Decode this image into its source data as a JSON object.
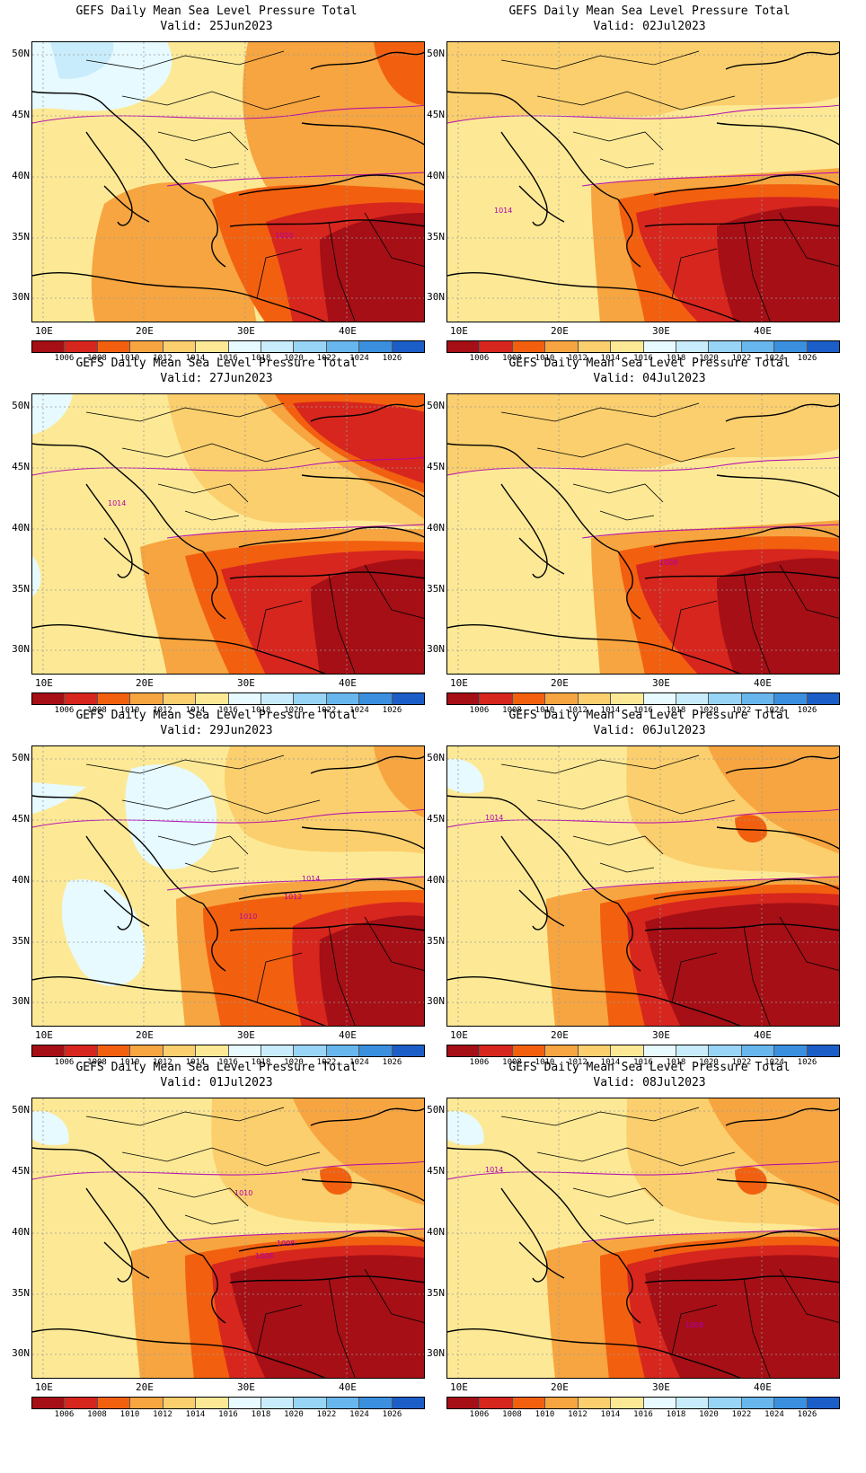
{
  "title": "GEFS Daily Mean Sea Level Pressure Total",
  "lat_labels": [
    "50N",
    "45N",
    "40N",
    "35N",
    "30N"
  ],
  "lon_labels": [
    "10E",
    "20E",
    "30E",
    "40E"
  ],
  "colorbar": {
    "labels": [
      "1006",
      "1008",
      "1010",
      "1012",
      "1014",
      "1016",
      "1018",
      "1020",
      "1022",
      "1024",
      "1026"
    ],
    "colors": [
      "#a50f15",
      "#d7261e",
      "#f2600f",
      "#f7a540",
      "#fbcf6d",
      "#fde995",
      "#e6faff",
      "#c8ecfb",
      "#98d4f5",
      "#68b6ee",
      "#3a8fdf",
      "#1c5ec8"
    ]
  },
  "panels": [
    {
      "valid": "Valid: 25Jun2023",
      "contour_labels": [
        "1010"
      ],
      "pattern": "a"
    },
    {
      "valid": "Valid: 02Jul2023",
      "contour_labels": [
        "1014"
      ],
      "pattern": "b"
    },
    {
      "valid": "Valid: 27Jun2023",
      "contour_labels": [
        "1014"
      ],
      "pattern": "c"
    },
    {
      "valid": "Valid: 04Jul2023",
      "contour_labels": [
        "1008"
      ],
      "pattern": "b"
    },
    {
      "valid": "Valid: 29Jun2023",
      "contour_labels": [
        "1014",
        "1012",
        "1010"
      ],
      "pattern": "d"
    },
    {
      "valid": "Valid: 06Jul2023",
      "contour_labels": [
        "1014"
      ],
      "pattern": "e"
    },
    {
      "valid": "Valid: 01Jul2023",
      "contour_labels": [
        "1010",
        "1008",
        "1008"
      ],
      "pattern": "e"
    },
    {
      "valid": "Valid: 08Jul2023",
      "contour_labels": [
        "1014",
        "1008"
      ],
      "pattern": "e"
    }
  ]
}
